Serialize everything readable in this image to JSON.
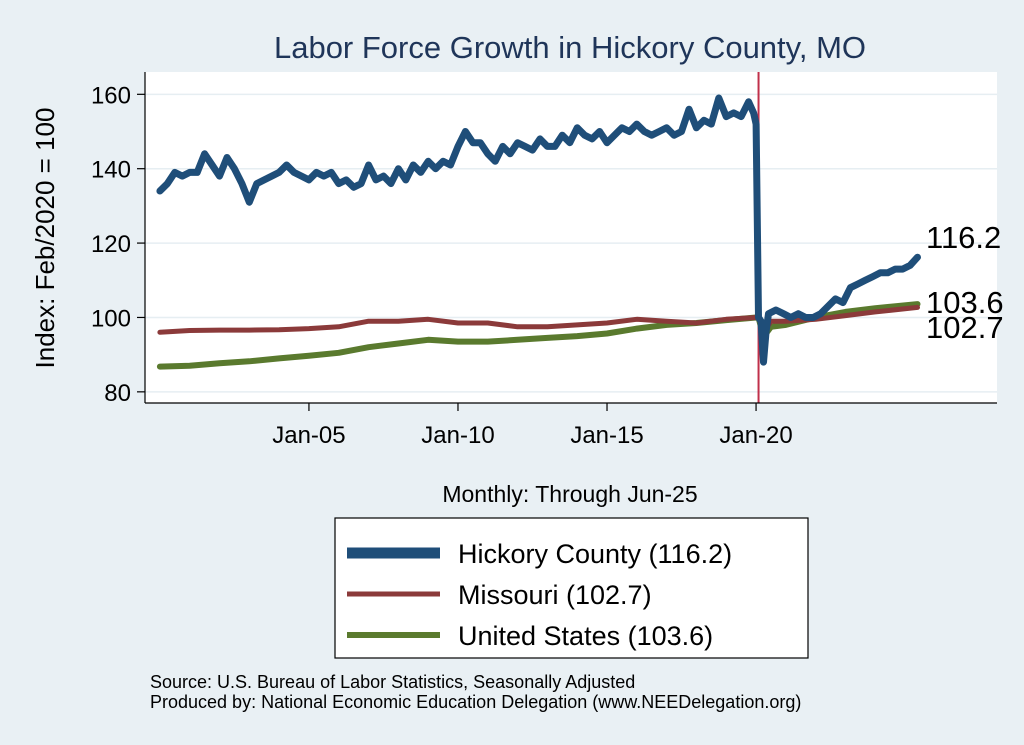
{
  "colors": {
    "background": "#e9f0f4",
    "plot_background": "#ffffff",
    "title": "#1f3559",
    "hickory": "#1f4e79",
    "missouri": "#8b3a3a",
    "united_states": "#5a7a2e",
    "vline": "#c0304a",
    "grid": "#e6eef2"
  },
  "chart_data": {
    "type": "line",
    "title": "Labor Force Growth in Hickory  County, MO",
    "ylabel": "Index: Feb/2020 = 100",
    "xlabel": "Monthly: Through Jun-25",
    "ylim": [
      77,
      166
    ],
    "yticks": [
      80,
      100,
      120,
      140,
      160
    ],
    "xlim": [
      "1999-07",
      "2028-02"
    ],
    "xticks": [
      {
        "x": "2005-01",
        "label": "Jan-05"
      },
      {
        "x": "2010-01",
        "label": "Jan-10"
      },
      {
        "x": "2015-01",
        "label": "Jan-15"
      },
      {
        "x": "2020-01",
        "label": "Jan-20"
      }
    ],
    "reference_line_x": "2020-02",
    "grid": true,
    "legend_position": "bottom",
    "series": [
      {
        "name": "Hickory  County (116.2)",
        "end_label": "116.2",
        "color": "#1f4e79",
        "points": [
          [
            "2000-01",
            134
          ],
          [
            "2000-04",
            136
          ],
          [
            "2000-07",
            139
          ],
          [
            "2000-10",
            138
          ],
          [
            "2001-01",
            139
          ],
          [
            "2001-04",
            139
          ],
          [
            "2001-07",
            144
          ],
          [
            "2001-10",
            141
          ],
          [
            "2002-01",
            138
          ],
          [
            "2002-04",
            143
          ],
          [
            "2002-07",
            140
          ],
          [
            "2002-10",
            136
          ],
          [
            "2003-01",
            131
          ],
          [
            "2003-04",
            136
          ],
          [
            "2003-07",
            137
          ],
          [
            "2003-10",
            138
          ],
          [
            "2004-01",
            139
          ],
          [
            "2004-04",
            141
          ],
          [
            "2004-07",
            139
          ],
          [
            "2004-10",
            138
          ],
          [
            "2005-01",
            137
          ],
          [
            "2005-04",
            139
          ],
          [
            "2005-07",
            138
          ],
          [
            "2005-10",
            139
          ],
          [
            "2006-01",
            136
          ],
          [
            "2006-04",
            137
          ],
          [
            "2006-07",
            135
          ],
          [
            "2006-10",
            136
          ],
          [
            "2007-01",
            141
          ],
          [
            "2007-04",
            137
          ],
          [
            "2007-07",
            138
          ],
          [
            "2007-10",
            136
          ],
          [
            "2008-01",
            140
          ],
          [
            "2008-04",
            137
          ],
          [
            "2008-07",
            141
          ],
          [
            "2008-10",
            139
          ],
          [
            "2009-01",
            142
          ],
          [
            "2009-04",
            140
          ],
          [
            "2009-07",
            142
          ],
          [
            "2009-10",
            141
          ],
          [
            "2010-01",
            146
          ],
          [
            "2010-04",
            150
          ],
          [
            "2010-07",
            147
          ],
          [
            "2010-10",
            147
          ],
          [
            "2011-01",
            144
          ],
          [
            "2011-04",
            142
          ],
          [
            "2011-07",
            146
          ],
          [
            "2011-10",
            144
          ],
          [
            "2012-01",
            147
          ],
          [
            "2012-04",
            146
          ],
          [
            "2012-07",
            145
          ],
          [
            "2012-10",
            148
          ],
          [
            "2013-01",
            146
          ],
          [
            "2013-04",
            146
          ],
          [
            "2013-07",
            149
          ],
          [
            "2013-10",
            147
          ],
          [
            "2014-01",
            151
          ],
          [
            "2014-04",
            149
          ],
          [
            "2014-07",
            148
          ],
          [
            "2014-10",
            150
          ],
          [
            "2015-01",
            147
          ],
          [
            "2015-04",
            149
          ],
          [
            "2015-07",
            151
          ],
          [
            "2015-10",
            150
          ],
          [
            "2016-01",
            152
          ],
          [
            "2016-04",
            150
          ],
          [
            "2016-07",
            149
          ],
          [
            "2016-10",
            150
          ],
          [
            "2017-01",
            151
          ],
          [
            "2017-04",
            149
          ],
          [
            "2017-07",
            150
          ],
          [
            "2017-10",
            156
          ],
          [
            "2018-01",
            151
          ],
          [
            "2018-04",
            153
          ],
          [
            "2018-07",
            152
          ],
          [
            "2018-10",
            159
          ],
          [
            "2019-01",
            154
          ],
          [
            "2019-04",
            155
          ],
          [
            "2019-07",
            154
          ],
          [
            "2019-10",
            158
          ],
          [
            "2019-12",
            155
          ],
          [
            "2020-01",
            152
          ],
          [
            "2020-02",
            100
          ],
          [
            "2020-03",
            99
          ],
          [
            "2020-04",
            88
          ],
          [
            "2020-05",
            96
          ],
          [
            "2020-06",
            101
          ],
          [
            "2020-09",
            102
          ],
          [
            "2020-12",
            101
          ],
          [
            "2021-03",
            100
          ],
          [
            "2021-06",
            101
          ],
          [
            "2021-09",
            100
          ],
          [
            "2021-12",
            100
          ],
          [
            "2022-03",
            101
          ],
          [
            "2022-06",
            103
          ],
          [
            "2022-09",
            105
          ],
          [
            "2022-12",
            104
          ],
          [
            "2023-03",
            108
          ],
          [
            "2023-06",
            109
          ],
          [
            "2023-09",
            110
          ],
          [
            "2023-12",
            111
          ],
          [
            "2024-03",
            112
          ],
          [
            "2024-06",
            112
          ],
          [
            "2024-09",
            113
          ],
          [
            "2024-12",
            113
          ],
          [
            "2025-03",
            114
          ],
          [
            "2025-06",
            116.2
          ]
        ]
      },
      {
        "name": "Missouri (102.7)",
        "end_label": "102.7",
        "color": "#8b3a3a",
        "points": [
          [
            "2000-01",
            96
          ],
          [
            "2001-01",
            96.5
          ],
          [
            "2002-01",
            96.6
          ],
          [
            "2003-01",
            96.6
          ],
          [
            "2004-01",
            96.7
          ],
          [
            "2005-01",
            97
          ],
          [
            "2006-01",
            97.5
          ],
          [
            "2007-01",
            99
          ],
          [
            "2008-01",
            99
          ],
          [
            "2009-01",
            99.5
          ],
          [
            "2010-01",
            98.5
          ],
          [
            "2011-01",
            98.5
          ],
          [
            "2012-01",
            97.5
          ],
          [
            "2013-01",
            97.5
          ],
          [
            "2014-01",
            98
          ],
          [
            "2015-01",
            98.5
          ],
          [
            "2016-01",
            99.5
          ],
          [
            "2017-01",
            99
          ],
          [
            "2018-01",
            98.5
          ],
          [
            "2019-01",
            99.5
          ],
          [
            "2020-01",
            100
          ],
          [
            "2020-02",
            100
          ],
          [
            "2020-04",
            96
          ],
          [
            "2020-07",
            99
          ],
          [
            "2021-01",
            99
          ],
          [
            "2022-01",
            99.5
          ],
          [
            "2023-01",
            100.5
          ],
          [
            "2024-01",
            101.5
          ],
          [
            "2025-06",
            102.7
          ]
        ]
      },
      {
        "name": "United States (103.6)",
        "end_label": "103.6",
        "color": "#5a7a2e",
        "points": [
          [
            "2000-01",
            86.8
          ],
          [
            "2001-01",
            87
          ],
          [
            "2002-01",
            87.7
          ],
          [
            "2003-01",
            88.2
          ],
          [
            "2004-01",
            89
          ],
          [
            "2005-01",
            89.7
          ],
          [
            "2006-01",
            90.5
          ],
          [
            "2007-01",
            92
          ],
          [
            "2008-01",
            93
          ],
          [
            "2009-01",
            94
          ],
          [
            "2010-01",
            93.5
          ],
          [
            "2011-01",
            93.5
          ],
          [
            "2012-01",
            94
          ],
          [
            "2013-01",
            94.5
          ],
          [
            "2014-01",
            95
          ],
          [
            "2015-01",
            95.7
          ],
          [
            "2016-01",
            97
          ],
          [
            "2017-01",
            98
          ],
          [
            "2018-01",
            98.5
          ],
          [
            "2019-01",
            99.3
          ],
          [
            "2020-01",
            100
          ],
          [
            "2020-02",
            100
          ],
          [
            "2020-04",
            94.8
          ],
          [
            "2020-07",
            97.5
          ],
          [
            "2021-01",
            98
          ],
          [
            "2022-01",
            100
          ],
          [
            "2023-01",
            101.5
          ],
          [
            "2024-01",
            102.5
          ],
          [
            "2025-06",
            103.6
          ]
        ]
      }
    ]
  },
  "footer": {
    "source": "Source: U.S. Bureau of Labor Statistics, Seasonally Adjusted",
    "produced": "Produced by: National Economic Education Delegation (www.NEEDelegation.org)"
  }
}
